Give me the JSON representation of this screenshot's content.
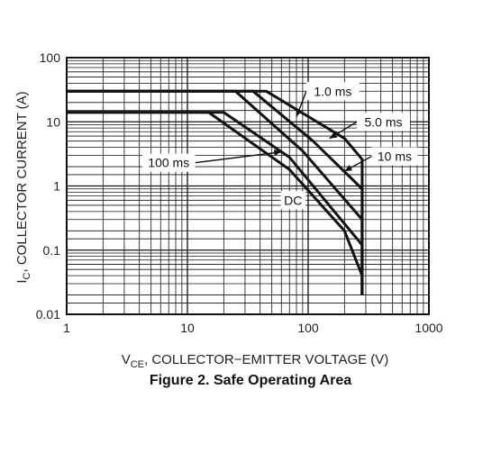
{
  "caption": "Figure 2. Safe Operating Area",
  "chart_data": {
    "type": "line",
    "scale": {
      "x": "log",
      "y": "log"
    },
    "xlim": [
      1,
      1000
    ],
    "ylim": [
      0.01,
      100
    ],
    "grid": true,
    "x_ticks": [
      {
        "value": 1,
        "label": "1"
      },
      {
        "value": 10,
        "label": "10"
      },
      {
        "value": 100,
        "label": "100"
      },
      {
        "value": 1000,
        "label": "1000"
      }
    ],
    "y_ticks": [
      {
        "value": 0.01,
        "label": "0.01"
      },
      {
        "value": 0.1,
        "label": "0.1"
      },
      {
        "value": 1,
        "label": "1"
      },
      {
        "value": 10,
        "label": "10"
      },
      {
        "value": 100,
        "label": "100"
      }
    ],
    "xlabel": {
      "pre": "V",
      "sub": "CE",
      "post": ", COLLECTOR−EMITTER VOLTAGE (V)"
    },
    "ylabel": {
      "pre": "I",
      "sub": "C",
      "post": ", COLLECTOR CURRENT (A)"
    },
    "series": [
      {
        "name": "1.0 ms",
        "points": [
          [
            1,
            30
          ],
          [
            45,
            30
          ],
          [
            200,
            5.5
          ],
          [
            280,
            2.6
          ],
          [
            280,
            0.02
          ]
        ]
      },
      {
        "name": "5.0 ms",
        "points": [
          [
            1,
            30
          ],
          [
            35,
            30
          ],
          [
            110,
            5.0
          ],
          [
            280,
            0.9
          ],
          [
            280,
            0.02
          ]
        ]
      },
      {
        "name": "10 ms",
        "points": [
          [
            1,
            30
          ],
          [
            25,
            30
          ],
          [
            90,
            3.5
          ],
          [
            280,
            0.3
          ],
          [
            280,
            0.02
          ]
        ]
      },
      {
        "name": "100 ms",
        "points": [
          [
            1,
            14
          ],
          [
            20,
            14
          ],
          [
            70,
            2.8
          ],
          [
            280,
            0.12
          ],
          [
            280,
            0.02
          ]
        ]
      },
      {
        "name": "DC",
        "points": [
          [
            1,
            14
          ],
          [
            15,
            14
          ],
          [
            70,
            1.8
          ],
          [
            200,
            0.2
          ],
          [
            280,
            0.04
          ],
          [
            280,
            0.02
          ]
        ]
      }
    ],
    "annotations": [
      {
        "text": "1.0 ms",
        "x": 160,
        "y": 30,
        "target": [
          80,
          12
        ]
      },
      {
        "text": "5.0 ms",
        "x": 420,
        "y": 10,
        "target": [
          150,
          5.5
        ]
      },
      {
        "text": "10 ms",
        "x": 520,
        "y": 2.9,
        "target": [
          200,
          1.7
        ]
      },
      {
        "text": "100 ms",
        "x": 7,
        "y": 2.3,
        "target": [
          60,
          3.4
        ]
      },
      {
        "text": "DC",
        "x": 75,
        "y": 0.6,
        "target": null
      }
    ]
  }
}
